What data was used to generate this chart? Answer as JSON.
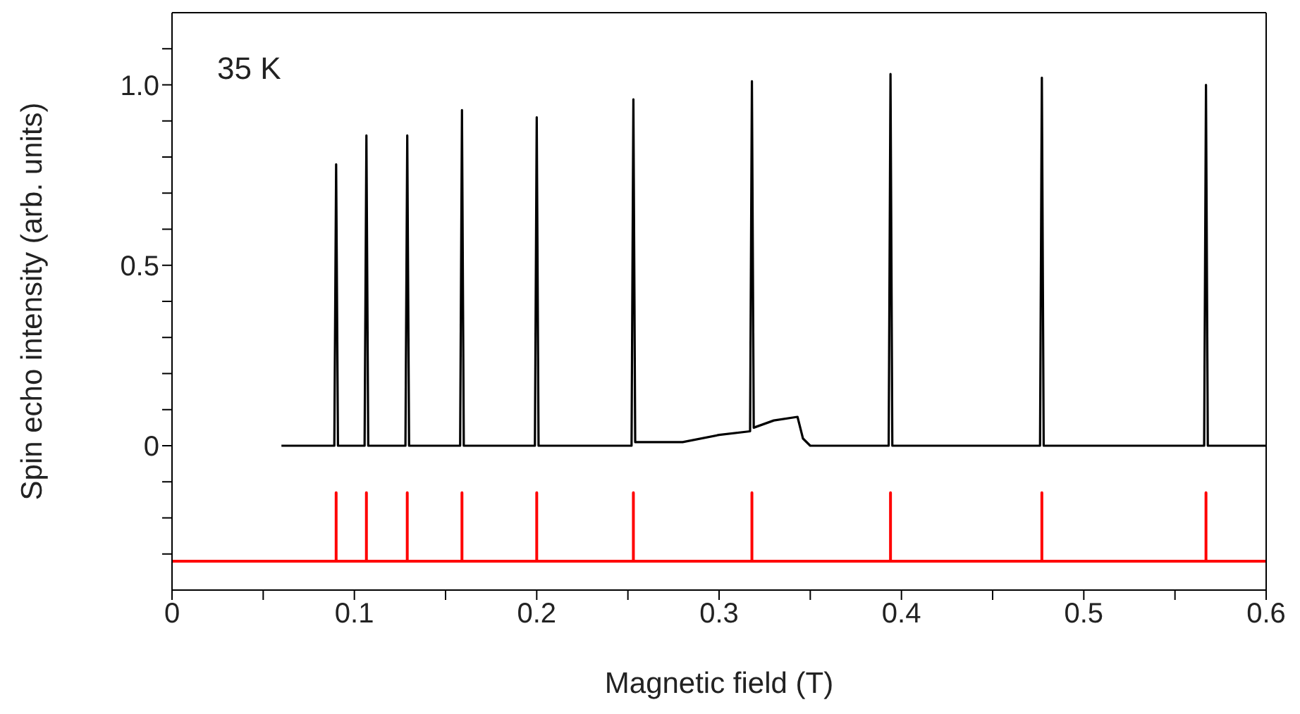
{
  "chart_data": {
    "type": "line",
    "xlabel": "Magnetic field (T)",
    "ylabel": "Spin echo intensity (arb. units)",
    "annotations": [
      "35 K"
    ],
    "xlim": [
      0,
      0.6
    ],
    "ylim": [
      -0.4,
      1.2
    ],
    "xticks": [
      0,
      {
        "value": 0.05,
        "label": null
      },
      0.1,
      {
        "value": 0.15,
        "label": null
      },
      0.2,
      {
        "value": 0.25,
        "label": null
      },
      0.3,
      {
        "value": 0.35,
        "label": null
      },
      0.4,
      {
        "value": 0.45,
        "label": null
      },
      0.5,
      {
        "value": 0.55,
        "label": null
      },
      0.6
    ],
    "yticks": [
      {
        "value": -0.3,
        "label": null
      },
      {
        "value": -0.2,
        "label": null
      },
      {
        "value": -0.1,
        "label": null
      },
      0,
      {
        "value": 0.1,
        "label": null
      },
      {
        "value": 0.2,
        "label": null
      },
      {
        "value": 0.3,
        "label": null
      },
      {
        "value": 0.4,
        "label": null
      },
      0.5,
      {
        "value": 0.6,
        "label": null
      },
      {
        "value": 0.7,
        "label": null
      },
      {
        "value": 0.8,
        "label": null
      },
      {
        "value": 0.9,
        "label": null
      },
      {
        "value": 1,
        "label": "1.0"
      },
      {
        "value": 1.1,
        "label": null
      }
    ],
    "marker": "none",
    "line_style": "solid",
    "series": [
      {
        "color": "#000000",
        "x": [
          0.06,
          0.089,
          0.09,
          0.091,
          0.1056,
          0.1066,
          0.1076,
          0.128,
          0.129,
          0.13,
          0.158,
          0.159,
          0.16,
          0.199,
          0.2,
          0.201,
          0.252,
          0.253,
          0.254,
          0.28,
          0.3,
          0.317,
          0.318,
          0.319,
          0.33,
          0.343,
          0.346,
          0.35,
          0.393,
          0.394,
          0.395,
          0.476,
          0.477,
          0.478,
          0.566,
          0.567,
          0.568,
          0.6
        ],
        "values": [
          0,
          0,
          0.78,
          0,
          0,
          0.86,
          0,
          0,
          0.86,
          0,
          0,
          0.93,
          0,
          0,
          0.91,
          0,
          0,
          0.96,
          0.01,
          0.01,
          0.03,
          0.04,
          1.01,
          0.05,
          0.07,
          0.08,
          0.02,
          0,
          0,
          1.03,
          0,
          0,
          1.02,
          0,
          0,
          1.0,
          0,
          0
        ]
      },
      {
        "color": "#ff0000",
        "x": [
          0,
          0.09,
          0.09,
          0.09,
          0.1066,
          0.1066,
          0.1066,
          0.129,
          0.129,
          0.129,
          0.159,
          0.159,
          0.159,
          0.2,
          0.2,
          0.2,
          0.253,
          0.253,
          0.253,
          0.318,
          0.318,
          0.318,
          0.394,
          0.394,
          0.394,
          0.477,
          0.477,
          0.477,
          0.567,
          0.567,
          0.567,
          0.6
        ],
        "values": [
          -0.32,
          -0.32,
          -0.13,
          -0.32,
          -0.32,
          -0.13,
          -0.32,
          -0.32,
          -0.13,
          -0.32,
          -0.32,
          -0.13,
          -0.32,
          -0.32,
          -0.13,
          -0.32,
          -0.32,
          -0.13,
          -0.32,
          -0.32,
          -0.13,
          -0.32,
          -0.32,
          -0.13,
          -0.32,
          -0.32,
          -0.13,
          -0.32,
          -0.32,
          -0.13,
          -0.32,
          -0.32
        ]
      }
    ]
  }
}
